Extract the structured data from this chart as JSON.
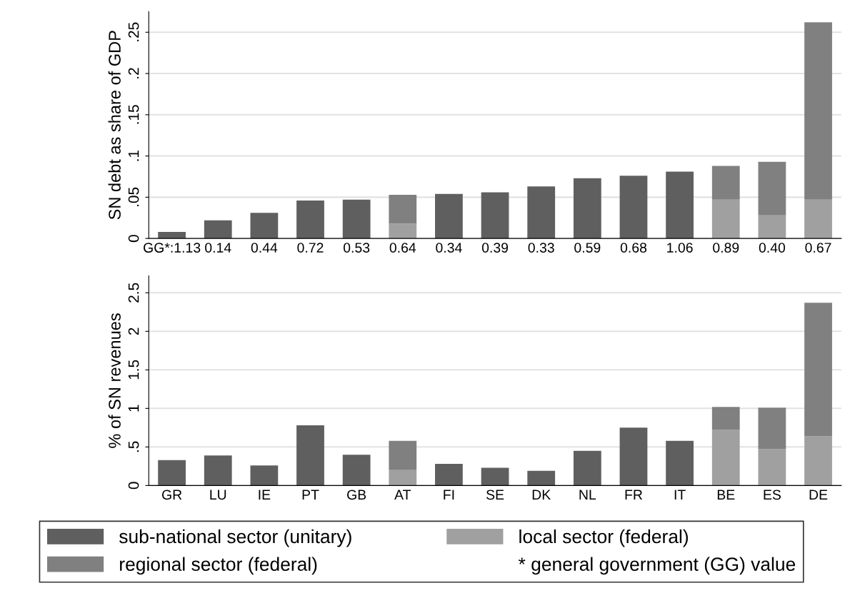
{
  "chart_data": [
    {
      "type": "bar",
      "stacked": true,
      "ylabel": "SN debt as share of GDP",
      "categories": [
        "GG*:1.13",
        "0.14",
        "0.44",
        "0.72",
        "0.53",
        "0.64",
        "0.34",
        "0.39",
        "0.33",
        "0.59",
        "0.68",
        "1.06",
        "0.89",
        "0.40",
        "0.67"
      ],
      "series": [
        {
          "color": "#5f5f5f",
          "values": [
            0.008,
            0.022,
            0.031,
            0.046,
            0.047,
            0,
            0.054,
            0.056,
            0.063,
            0.073,
            0.076,
            0.081,
            0,
            0,
            0
          ]
        },
        {
          "color": "#a0a0a0",
          "values": [
            0,
            0,
            0,
            0,
            0,
            0.018,
            0,
            0,
            0,
            0,
            0,
            0,
            0.047,
            0.028,
            0.047
          ]
        },
        {
          "color": "#808080",
          "values": [
            0,
            0,
            0,
            0,
            0,
            0.035,
            0,
            0,
            0,
            0,
            0,
            0,
            0.041,
            0.065,
            0.215
          ]
        }
      ],
      "ylim": [
        0,
        0.275
      ],
      "yticks": [
        0,
        {
          "value": 0.05,
          "label": ".05"
        },
        {
          "value": 0.1,
          "label": ".1"
        },
        {
          "value": 0.15,
          "label": ".15"
        },
        {
          "value": 0.2,
          "label": ".2"
        },
        {
          "value": 0.25,
          "label": ".25"
        }
      ],
      "grid": "y",
      "legend": false
    },
    {
      "type": "bar",
      "stacked": true,
      "ylabel": "% of SN revenues",
      "categories": [
        "GR",
        "LU",
        "IE",
        "PT",
        "GB",
        "AT",
        "FI",
        "SE",
        "DK",
        "NL",
        "FR",
        "IT",
        "BE",
        "ES",
        "DE"
      ],
      "series": [
        {
          "name": "sub-national sector (unitary)",
          "color": "#5f5f5f",
          "values": [
            0.33,
            0.39,
            0.26,
            0.78,
            0.4,
            0,
            0.28,
            0.23,
            0.19,
            0.45,
            0.75,
            0.58,
            0,
            0,
            0
          ]
        },
        {
          "name": "local sector (federal)",
          "color": "#a0a0a0",
          "values": [
            0,
            0,
            0,
            0,
            0,
            0.2,
            0,
            0,
            0,
            0,
            0,
            0,
            0.72,
            0.47,
            0.64
          ]
        },
        {
          "name": "regional sector (federal)",
          "color": "#808080",
          "values": [
            0,
            0,
            0,
            0,
            0,
            0.38,
            0,
            0,
            0,
            0,
            0,
            0,
            0.3,
            0.54,
            1.73
          ]
        }
      ],
      "ylim": [
        0,
        2.72
      ],
      "yticks": [
        0,
        {
          "value": 0.5,
          "label": ".5"
        },
        1,
        1.5,
        2,
        2.5
      ],
      "grid": "y",
      "legend": "bottom",
      "annotations": [
        "* general government (GG) value"
      ]
    }
  ]
}
